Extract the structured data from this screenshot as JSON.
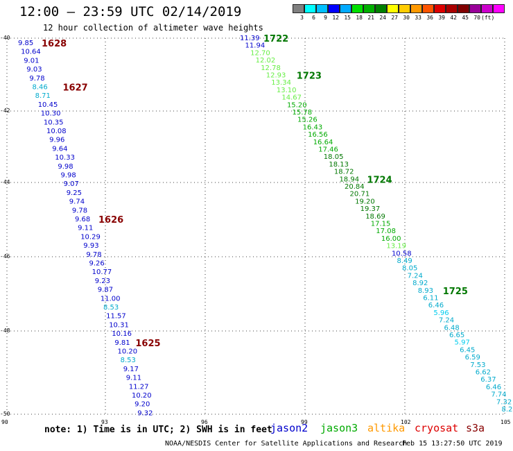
{
  "header": {
    "title": "12:00 — 23:59 UTC 02/14/2019",
    "subtitle": "12 hour collection of altimeter wave heights"
  },
  "colorbar": {
    "colors": [
      "#808080",
      "#00ffff",
      "#00c0ff",
      "#0000ff",
      "#00aaff",
      "#00e000",
      "#00b000",
      "#008000",
      "#ffff00",
      "#ffcc00",
      "#ff9900",
      "#ff5500",
      "#dd0000",
      "#aa0000",
      "#800000",
      "#990099",
      "#cc00cc",
      "#ff00ff"
    ],
    "labels": [
      "3",
      "6",
      "9",
      "12",
      "15",
      "18",
      "21",
      "24",
      "27",
      "30",
      "33",
      "36",
      "39",
      "42",
      "45",
      "70",
      "(ft)"
    ]
  },
  "axes": {
    "lat_labels": [
      "-40",
      "-42",
      "-44",
      "-46",
      "-48",
      "-50"
    ],
    "lon_labels": [
      "90",
      "93",
      "96",
      "99",
      "102",
      "105"
    ]
  },
  "tracks": [
    {
      "satellite": "jason2",
      "points": [
        {
          "v": "9.85",
          "c": "#0000cc"
        },
        {
          "v": "10.64",
          "c": "#0000cc"
        },
        {
          "v": "9.01",
          "c": "#0000cc"
        },
        {
          "v": "9.03",
          "c": "#0000cc"
        },
        {
          "v": "9.78",
          "c": "#0000cc"
        },
        {
          "v": "8.46",
          "c": "#00aacc"
        },
        {
          "v": "8.71",
          "c": "#00aacc"
        },
        {
          "v": "10.45",
          "c": "#0000cc"
        },
        {
          "v": "10.30",
          "c": "#0000cc"
        },
        {
          "v": "10.35",
          "c": "#0000cc"
        },
        {
          "v": "10.08",
          "c": "#0000cc"
        },
        {
          "v": "9.96",
          "c": "#0000cc"
        },
        {
          "v": "9.64",
          "c": "#0000cc"
        },
        {
          "v": "10.33",
          "c": "#0000cc"
        },
        {
          "v": "9.98",
          "c": "#0000cc"
        },
        {
          "v": "9.98",
          "c": "#0000cc"
        },
        {
          "v": "9.07",
          "c": "#0000cc"
        },
        {
          "v": "9.25",
          "c": "#0000cc"
        },
        {
          "v": "9.74",
          "c": "#0000cc"
        },
        {
          "v": "9.78",
          "c": "#0000cc"
        },
        {
          "v": "9.68",
          "c": "#0000cc"
        },
        {
          "v": "9.11",
          "c": "#0000cc"
        },
        {
          "v": "10.29",
          "c": "#0000cc"
        },
        {
          "v": "9.93",
          "c": "#0000cc"
        },
        {
          "v": "9.78",
          "c": "#0000cc"
        },
        {
          "v": "9.26",
          "c": "#0000cc"
        },
        {
          "v": "10.77",
          "c": "#0000cc"
        },
        {
          "v": "9.23",
          "c": "#0000cc"
        },
        {
          "v": "9.87",
          "c": "#0000cc"
        },
        {
          "v": "11.00",
          "c": "#0000cc"
        },
        {
          "v": "8.53",
          "c": "#00aacc"
        },
        {
          "v": "11.57",
          "c": "#0000cc"
        },
        {
          "v": "10.31",
          "c": "#0000cc"
        },
        {
          "v": "10.16",
          "c": "#0000cc"
        },
        {
          "v": "9.81",
          "c": "#0000cc"
        },
        {
          "v": "10.20",
          "c": "#0000cc"
        },
        {
          "v": "8.53",
          "c": "#00aacc"
        },
        {
          "v": "9.17",
          "c": "#0000cc"
        },
        {
          "v": "9.11",
          "c": "#0000cc"
        },
        {
          "v": "11.27",
          "c": "#0000cc"
        },
        {
          "v": "10.20",
          "c": "#0000cc"
        },
        {
          "v": "9.20",
          "c": "#0000cc"
        },
        {
          "v": "9.32",
          "c": "#0000cc"
        }
      ],
      "time_labels": [
        {
          "t": "1628",
          "after": 0
        },
        {
          "t": "1627",
          "after": 5
        },
        {
          "t": "1626",
          "after": 20
        },
        {
          "t": "1625",
          "after": 34
        }
      ]
    },
    {
      "satellite": "jason3",
      "points": [
        {
          "v": "11.39",
          "c": "#0000cc"
        },
        {
          "v": "11.94",
          "c": "#0000cc"
        },
        {
          "v": "12.70",
          "c": "#66ee44"
        },
        {
          "v": "12.02",
          "c": "#66ee44"
        },
        {
          "v": "12.78",
          "c": "#66ee44"
        },
        {
          "v": "12.93",
          "c": "#66ee44"
        },
        {
          "v": "13.34",
          "c": "#66ee44"
        },
        {
          "v": "13.10",
          "c": "#66ee44"
        },
        {
          "v": "14.67",
          "c": "#66ee44"
        },
        {
          "v": "15.20",
          "c": "#00aa00"
        },
        {
          "v": "15.78",
          "c": "#00aa00"
        },
        {
          "v": "15.26",
          "c": "#00aa00"
        },
        {
          "v": "16.43",
          "c": "#00aa00"
        },
        {
          "v": "16.56",
          "c": "#00aa00"
        },
        {
          "v": "16.64",
          "c": "#00aa00"
        },
        {
          "v": "17.46",
          "c": "#00aa00"
        },
        {
          "v": "18.05",
          "c": "#007700"
        },
        {
          "v": "18.13",
          "c": "#007700"
        },
        {
          "v": "18.72",
          "c": "#007700"
        },
        {
          "v": "18.94",
          "c": "#007700"
        },
        {
          "v": "20.84",
          "c": "#007700"
        },
        {
          "v": "20.71",
          "c": "#007700"
        },
        {
          "v": "19.20",
          "c": "#007700"
        },
        {
          "v": "19.37",
          "c": "#007700"
        },
        {
          "v": "18.69",
          "c": "#007700"
        },
        {
          "v": "17.15",
          "c": "#00aa00"
        },
        {
          "v": "17.08",
          "c": "#00aa00"
        },
        {
          "v": "16.00",
          "c": "#00aa00"
        },
        {
          "v": "13.19",
          "c": "#66ee44"
        },
        {
          "v": "10.58",
          "c": "#0000cc"
        },
        {
          "v": "8.49",
          "c": "#00aacc"
        },
        {
          "v": "8.05",
          "c": "#00aacc"
        },
        {
          "v": "7.24",
          "c": "#00aacc"
        },
        {
          "v": "8.92",
          "c": "#00aacc"
        },
        {
          "v": "8.93",
          "c": "#00aacc"
        },
        {
          "v": "6.11",
          "c": "#00aacc"
        },
        {
          "v": "6.46",
          "c": "#00aacc"
        },
        {
          "v": "5.96",
          "c": "#00ccee"
        },
        {
          "v": "7.24",
          "c": "#00aacc"
        },
        {
          "v": "6.48",
          "c": "#00aacc"
        },
        {
          "v": "6.65",
          "c": "#00aacc"
        },
        {
          "v": "5.97",
          "c": "#00ccee"
        },
        {
          "v": "6.45",
          "c": "#00aacc"
        },
        {
          "v": "6.59",
          "c": "#00aacc"
        },
        {
          "v": "7.53",
          "c": "#00aacc"
        },
        {
          "v": "6.62",
          "c": "#00aacc"
        },
        {
          "v": "6.37",
          "c": "#00aacc"
        },
        {
          "v": "6.46",
          "c": "#00aacc"
        },
        {
          "v": "7.74",
          "c": "#00aacc"
        },
        {
          "v": "7.32",
          "c": "#00aacc"
        },
        {
          "v": "8.2",
          "c": "#00aacc"
        }
      ],
      "time_labels": [
        {
          "t": "1722",
          "after": 0
        },
        {
          "t": "1723",
          "after": 5
        },
        {
          "t": "1724",
          "after": 19
        },
        {
          "t": "1725",
          "after": 34
        }
      ]
    }
  ],
  "footer": {
    "note": "note:  1) Time is in UTC;  2) SWH is in feet",
    "legend": [
      {
        "name": "jason2",
        "color": "#0000cc"
      },
      {
        "name": "jason3",
        "color": "#00aa00"
      },
      {
        "name": "altika",
        "color": "#ff9900"
      },
      {
        "name": "cryosat",
        "color": "#dd0000"
      },
      {
        "name": "s3a",
        "color": "#880000"
      }
    ],
    "credit": "NOAA/NESDIS Center for Satellite Applications and Research",
    "timestamp": "Feb 15 13:27:50 UTC 2019"
  }
}
